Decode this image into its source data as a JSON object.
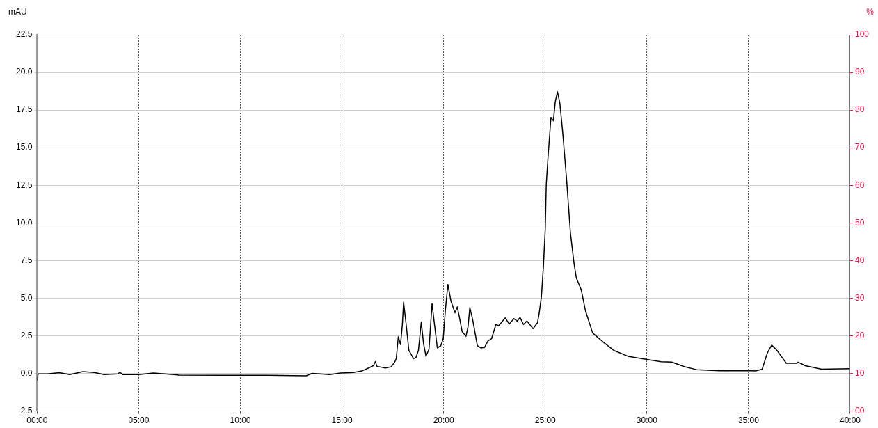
{
  "chart_data": {
    "type": "line",
    "ylabel": "mAU",
    "y2label": "%",
    "series": [
      {
        "color": "#000000",
        "x": [
          0,
          0.05,
          0.51,
          1.09,
          1.61,
          2.25,
          2.82,
          3.29,
          3.98,
          4.07,
          4.21,
          5.0,
          5.72,
          6.99,
          9.07,
          11.39,
          13.24,
          13.53,
          14.4,
          14.92,
          15.56,
          15.97,
          16.31,
          16.55,
          16.64,
          16.72,
          17.13,
          17.42,
          17.59,
          17.67,
          17.77,
          17.88,
          17.97,
          18.03,
          18.17,
          18.29,
          18.52,
          18.64,
          18.76,
          18.9,
          19.01,
          19.13,
          19.28,
          19.43,
          19.55,
          19.69,
          19.86,
          19.98,
          20.09,
          20.21,
          20.36,
          20.56,
          20.67,
          20.79,
          20.91,
          21.1,
          21.2,
          21.29,
          21.43,
          21.66,
          21.83,
          22.01,
          22.18,
          22.36,
          22.57,
          22.71,
          23.03,
          23.23,
          23.46,
          23.62,
          23.76,
          23.93,
          24.1,
          24.4,
          24.62,
          24.7,
          24.81,
          24.91,
          25.0,
          25.05,
          25.14,
          25.28,
          25.4,
          25.49,
          25.6,
          25.72,
          25.86,
          26.05,
          26.24,
          26.42,
          26.53,
          26.77,
          26.98,
          27.33,
          27.79,
          28.37,
          29.07,
          30.0,
          30.7,
          31.22,
          31.86,
          32.44,
          33.6,
          35.0,
          35.35,
          35.67,
          35.93,
          36.14,
          36.4,
          36.86,
          37.38,
          37.44,
          37.79,
          38.6,
          39.98
        ],
        "values": [
          -0.47,
          -0.03,
          -0.03,
          0.05,
          -0.08,
          0.12,
          0.06,
          -0.08,
          -0.03,
          0.08,
          -0.08,
          -0.08,
          0.03,
          -0.11,
          -0.12,
          -0.12,
          -0.16,
          0.0,
          -0.08,
          0.03,
          0.06,
          0.16,
          0.36,
          0.52,
          0.78,
          0.47,
          0.36,
          0.44,
          0.75,
          0.98,
          2.44,
          1.92,
          3.25,
          4.73,
          3.09,
          1.53,
          0.98,
          1.06,
          1.53,
          3.41,
          2.0,
          1.14,
          1.61,
          4.63,
          3.25,
          1.69,
          1.84,
          2.31,
          4.27,
          5.91,
          4.81,
          4.03,
          4.42,
          3.64,
          2.78,
          2.47,
          3.09,
          4.38,
          3.56,
          1.84,
          1.69,
          1.72,
          2.16,
          2.31,
          3.25,
          3.17,
          3.69,
          3.28,
          3.64,
          3.48,
          3.72,
          3.25,
          3.48,
          2.97,
          3.38,
          4.0,
          5.09,
          7.12,
          9.61,
          12.57,
          14.44,
          17.01,
          16.78,
          18.02,
          18.72,
          17.94,
          16.0,
          12.88,
          9.3,
          7.27,
          6.34,
          5.56,
          4.16,
          2.69,
          2.15,
          1.53,
          1.14,
          0.93,
          0.78,
          0.75,
          0.44,
          0.25,
          0.17,
          0.19,
          0.16,
          0.28,
          1.37,
          1.88,
          1.53,
          0.67,
          0.67,
          0.75,
          0.51,
          0.28,
          0.31
        ]
      }
    ],
    "xlim": [
      0,
      40
    ],
    "xticks": [
      {
        "value": 0,
        "label": "00:00"
      },
      {
        "value": 5,
        "label": "05:00"
      },
      {
        "value": 10,
        "label": "10:00"
      },
      {
        "value": 15,
        "label": "15:00"
      },
      {
        "value": 20,
        "label": "20:00"
      },
      {
        "value": 25,
        "label": "25:00"
      },
      {
        "value": 30,
        "label": "30:00"
      },
      {
        "value": 35,
        "label": "35:00"
      },
      {
        "value": 40,
        "label": "40:00"
      }
    ],
    "ylim": [
      -2.5,
      22.5
    ],
    "yticks": [
      -2.5,
      {
        "value": 0,
        "label": "0.0"
      },
      2.5,
      {
        "value": 5,
        "label": "5.0"
      },
      7.5,
      {
        "value": 10,
        "label": "10.0"
      },
      12.5,
      {
        "value": 15,
        "label": "15.0"
      },
      17.5,
      {
        "value": 20,
        "label": "20.0"
      },
      22.5
    ],
    "y2lim": [
      0,
      100
    ],
    "y2ticks": [
      {
        "value": 0,
        "label": "00"
      },
      10,
      20,
      30,
      40,
      50,
      60,
      70,
      80,
      90,
      100
    ],
    "grid": true,
    "legend": false,
    "marker": "none",
    "line_style": "solid"
  }
}
